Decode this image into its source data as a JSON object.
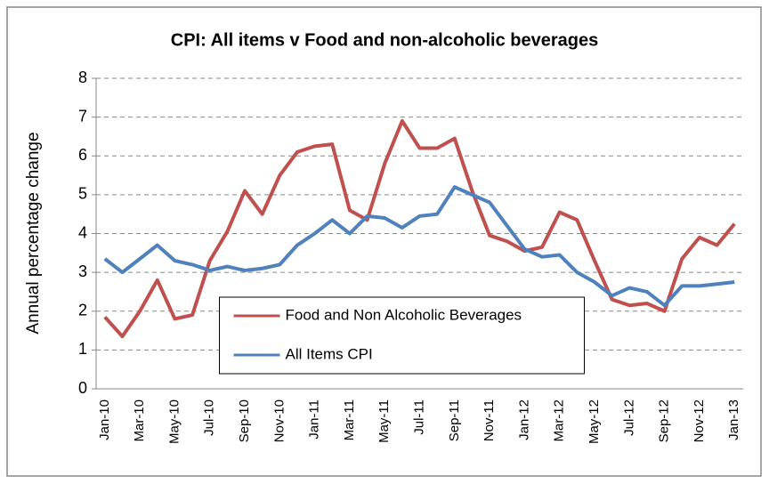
{
  "chart_data": {
    "type": "line",
    "title": "CPI: All items v Food and non-alcoholic beverages",
    "y_label": "Annual percentage change",
    "categories": [
      "Jan-10",
      null,
      "Mar-10",
      null,
      "May-10",
      null,
      "Jul-10",
      null,
      "Sep-10",
      null,
      "Nov-10",
      null,
      "Jan-11",
      null,
      "Mar-11",
      null,
      "May-11",
      null,
      "Jul-11",
      null,
      "Sep-11",
      null,
      "Nov-11",
      null,
      "Jan-12",
      null,
      "Mar-12",
      null,
      "May-12",
      null,
      "Jul-12",
      null,
      "Sep-12",
      null,
      "Nov-12",
      null,
      "Jan-13"
    ],
    "series": [
      {
        "name": "Food and Non Alcoholic Beverages",
        "color": "#c0504d",
        "values": [
          1.85,
          1.35,
          2.0,
          2.8,
          1.8,
          1.9,
          3.3,
          4.05,
          5.1,
          4.5,
          5.5,
          6.1,
          6.25,
          6.3,
          4.6,
          4.35,
          5.8,
          6.9,
          6.2,
          6.2,
          6.45,
          5.1,
          3.95,
          3.8,
          3.55,
          3.65,
          4.55,
          4.35,
          3.3,
          2.3,
          2.15,
          2.2,
          2.0,
          3.35,
          3.9,
          3.7,
          4.25
        ]
      },
      {
        "name": "All Items CPI",
        "color": "#4f81bd",
        "values": [
          3.35,
          3.0,
          3.35,
          3.7,
          3.3,
          3.2,
          3.05,
          3.15,
          3.05,
          3.1,
          3.2,
          3.7,
          4.0,
          4.35,
          4.0,
          4.45,
          4.4,
          4.15,
          4.45,
          4.5,
          5.2,
          5.0,
          4.8,
          4.2,
          3.6,
          3.4,
          3.45,
          3.0,
          2.75,
          2.4,
          2.6,
          2.5,
          2.15,
          2.65,
          2.65,
          2.7,
          2.75
        ]
      }
    ],
    "ylim": [
      0,
      8
    ],
    "yticks": [
      0,
      1,
      2,
      3,
      4,
      5,
      6,
      7,
      8
    ],
    "grid": true,
    "legend": "lower center"
  }
}
